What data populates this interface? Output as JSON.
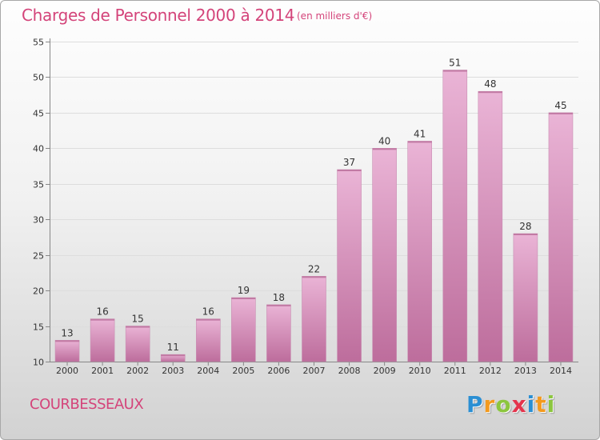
{
  "header": {
    "title": "Charges de Personnel 2000 à 2014",
    "subtitle": "(en milliers d'€)"
  },
  "footer": {
    "commune": "COURBESSEAUX",
    "logo_text": "Proxiti",
    "logo_letters": [
      {
        "ch": "P",
        "color": "#2b8fd3"
      },
      {
        "ch": "r",
        "color": "#f39a1e"
      },
      {
        "ch": "o",
        "color": "#8cc63f"
      },
      {
        "ch": "x",
        "color": "#e4344c"
      },
      {
        "ch": "i",
        "color": "#2b8fd3"
      },
      {
        "ch": "t",
        "color": "#f39a1e"
      },
      {
        "ch": "i",
        "color": "#8cc63f"
      }
    ]
  },
  "colors": {
    "accent": "#d4447a",
    "bar_light": "#eab4d6",
    "bar_dark": "#bd6d9c",
    "gridline": "#dddddd"
  },
  "chart_data": {
    "type": "bar",
    "categories": [
      "2000",
      "2001",
      "2002",
      "2003",
      "2004",
      "2005",
      "2006",
      "2007",
      "2008",
      "2009",
      "2010",
      "2011",
      "2012",
      "2013",
      "2014"
    ],
    "values": [
      13,
      16,
      15,
      11,
      16,
      19,
      18,
      22,
      37,
      40,
      41,
      51,
      48,
      28,
      45
    ],
    "data_labels": [
      "13",
      "16",
      "15",
      "11",
      "16",
      "19",
      "18",
      "22",
      "37",
      "40",
      "41",
      "51",
      "48",
      "28",
      "45"
    ],
    "ylim": [
      10,
      55
    ],
    "yticks": [
      10,
      15,
      20,
      25,
      30,
      35,
      40,
      45,
      50,
      55
    ],
    "ytick_labels": [
      "10",
      "15",
      "20",
      "25",
      "30",
      "35",
      "40",
      "45",
      "50",
      "55"
    ],
    "grid": true,
    "xlabel": "",
    "ylabel": ""
  }
}
